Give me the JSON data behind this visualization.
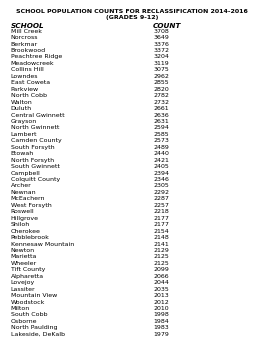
{
  "title_line1": "SCHOOL POPULATION COUNTS FOR RECLASSIFICATION 2014-2016",
  "title_line2": "(GRADES 9-12)",
  "col_header_school": "SCHOOL",
  "col_header_count": "COUNT",
  "schools": [
    "Mill Creek",
    "Norcross",
    "Berkmar",
    "Brookwood",
    "Peachtree Ridge",
    "Meadowcreek",
    "Collins Hill",
    "Lowndes",
    "East Coweta",
    "Parkview",
    "North Cobb",
    "Walton",
    "Duluth",
    "Central Gwinnett",
    "Grayson",
    "North Gwinnett",
    "Lambert",
    "Camden County",
    "South Forsyth",
    "Etowah",
    "North Forsyth",
    "South Gwinnett",
    "Campbell",
    "Colquitt County",
    "Archer",
    "Newnan",
    "McEachern",
    "West Forsyth",
    "Roswell",
    "Hillgrove",
    "Shiloh",
    "Cherokee",
    "Pebblebrook",
    "Kennesaw Mountain",
    "Newton",
    "Marietta",
    "Wheeler",
    "Tift County",
    "Alpharetta",
    "Lovejoy",
    "Lassiter",
    "Mountain View",
    "Woodstock",
    "Milton",
    "South Cobb",
    "Osborne",
    "North Paulding",
    "Lakeside, DeKalb"
  ],
  "counts": [
    3708,
    3649,
    3376,
    3372,
    3204,
    3119,
    3075,
    2962,
    2855,
    2820,
    2782,
    2732,
    2661,
    2636,
    2631,
    2594,
    2585,
    2573,
    2489,
    2440,
    2421,
    2405,
    2394,
    2346,
    2305,
    2292,
    2287,
    2257,
    2218,
    2177,
    2177,
    2154,
    2148,
    2141,
    2129,
    2125,
    2125,
    2099,
    2066,
    2044,
    2035,
    2013,
    2012,
    2010,
    1998,
    1984,
    1983,
    1979
  ],
  "title_fontsize": 4.5,
  "header_fontsize": 5.2,
  "data_fontsize": 4.5,
  "bg_color": "#ffffff",
  "fig_width": 2.64,
  "fig_height": 3.41,
  "dpi": 100
}
